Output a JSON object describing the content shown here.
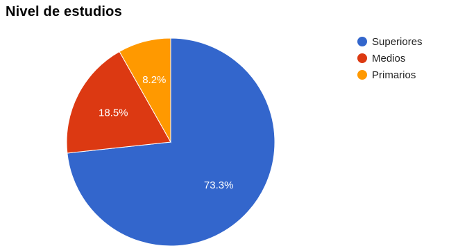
{
  "chart_data": {
    "type": "pie",
    "title": "Nivel de estudios",
    "categories": [
      "Superiores",
      "Medios",
      "Primarios"
    ],
    "values": [
      73.3,
      18.5,
      8.2
    ],
    "value_labels": [
      "73.3%",
      "18.5%",
      "8.2%"
    ],
    "colors": [
      "#3366cc",
      "#dc3912",
      "#ff9900"
    ],
    "legend_position": "right"
  }
}
